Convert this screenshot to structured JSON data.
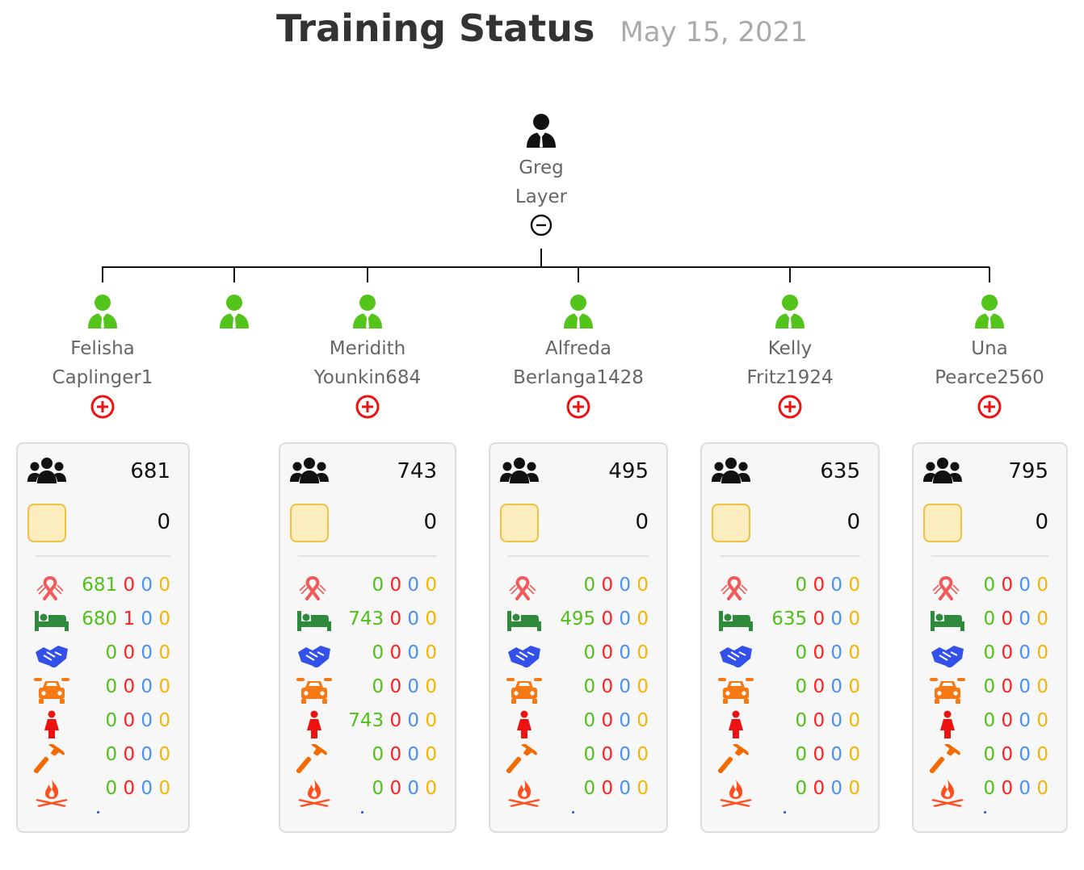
{
  "header": {
    "title": "Training Status",
    "date": "May 15, 2021"
  },
  "colors": {
    "manager_icon": "#111111",
    "employee_icon": "#52c41a",
    "collapse_toggle": "#111111",
    "expand_toggle": "#ee1111",
    "card_background": "#f7f7f7",
    "count_green": "#4fc117",
    "count_red": "#ff1f1f",
    "count_blue": "#4a90f0",
    "count_yellow": "#f5b400"
  },
  "icons": {
    "people": "group-icon",
    "pending": "pending-square-icon",
    "metrics": [
      "ribbon-icon",
      "bed-icon",
      "handshake-icon",
      "car-service-icon",
      "female-icon",
      "hammer-icon",
      "campfire-icon"
    ]
  },
  "root": {
    "first": "Greg",
    "last": "Layer",
    "toggle": "collapse"
  },
  "children": [
    {
      "first": "Felisha",
      "last": "Caplinger1",
      "count": "681",
      "pending": "0",
      "metrics": [
        [
          "681",
          "0",
          "0",
          "0"
        ],
        [
          "680",
          "1",
          "0",
          "0"
        ],
        [
          "0",
          "0",
          "0",
          "0"
        ],
        [
          "0",
          "0",
          "0",
          "0"
        ],
        [
          "0",
          "0",
          "0",
          "0"
        ],
        [
          "0",
          "0",
          "0",
          "0"
        ],
        [
          "0",
          "0",
          "0",
          "0"
        ]
      ]
    },
    {
      "first": "",
      "last": ""
    },
    {
      "first": "Meridith",
      "last": "Younkin684",
      "count": "743",
      "pending": "0",
      "metrics": [
        [
          "0",
          "0",
          "0",
          "0"
        ],
        [
          "743",
          "0",
          "0",
          "0"
        ],
        [
          "0",
          "0",
          "0",
          "0"
        ],
        [
          "0",
          "0",
          "0",
          "0"
        ],
        [
          "743",
          "0",
          "0",
          "0"
        ],
        [
          "0",
          "0",
          "0",
          "0"
        ],
        [
          "0",
          "0",
          "0",
          "0"
        ]
      ]
    },
    {
      "first": "Alfreda",
      "last": "Berlanga1428",
      "count": "495",
      "pending": "0",
      "metrics": [
        [
          "0",
          "0",
          "0",
          "0"
        ],
        [
          "495",
          "0",
          "0",
          "0"
        ],
        [
          "0",
          "0",
          "0",
          "0"
        ],
        [
          "0",
          "0",
          "0",
          "0"
        ],
        [
          "0",
          "0",
          "0",
          "0"
        ],
        [
          "0",
          "0",
          "0",
          "0"
        ],
        [
          "0",
          "0",
          "0",
          "0"
        ]
      ]
    },
    {
      "first": "Kelly",
      "last": "Fritz1924",
      "count": "635",
      "pending": "0",
      "metrics": [
        [
          "0",
          "0",
          "0",
          "0"
        ],
        [
          "635",
          "0",
          "0",
          "0"
        ],
        [
          "0",
          "0",
          "0",
          "0"
        ],
        [
          "0",
          "0",
          "0",
          "0"
        ],
        [
          "0",
          "0",
          "0",
          "0"
        ],
        [
          "0",
          "0",
          "0",
          "0"
        ],
        [
          "0",
          "0",
          "0",
          "0"
        ]
      ]
    },
    {
      "first": "Una",
      "last": "Pearce2560",
      "count": "795",
      "pending": "0",
      "metrics": [
        [
          "0",
          "0",
          "0",
          "0"
        ],
        [
          "0",
          "0",
          "0",
          "0"
        ],
        [
          "0",
          "0",
          "0",
          "0"
        ],
        [
          "0",
          "0",
          "0",
          "0"
        ],
        [
          "0",
          "0",
          "0",
          "0"
        ],
        [
          "0",
          "0",
          "0",
          "0"
        ],
        [
          "0",
          "0",
          "0",
          "0"
        ]
      ]
    }
  ]
}
